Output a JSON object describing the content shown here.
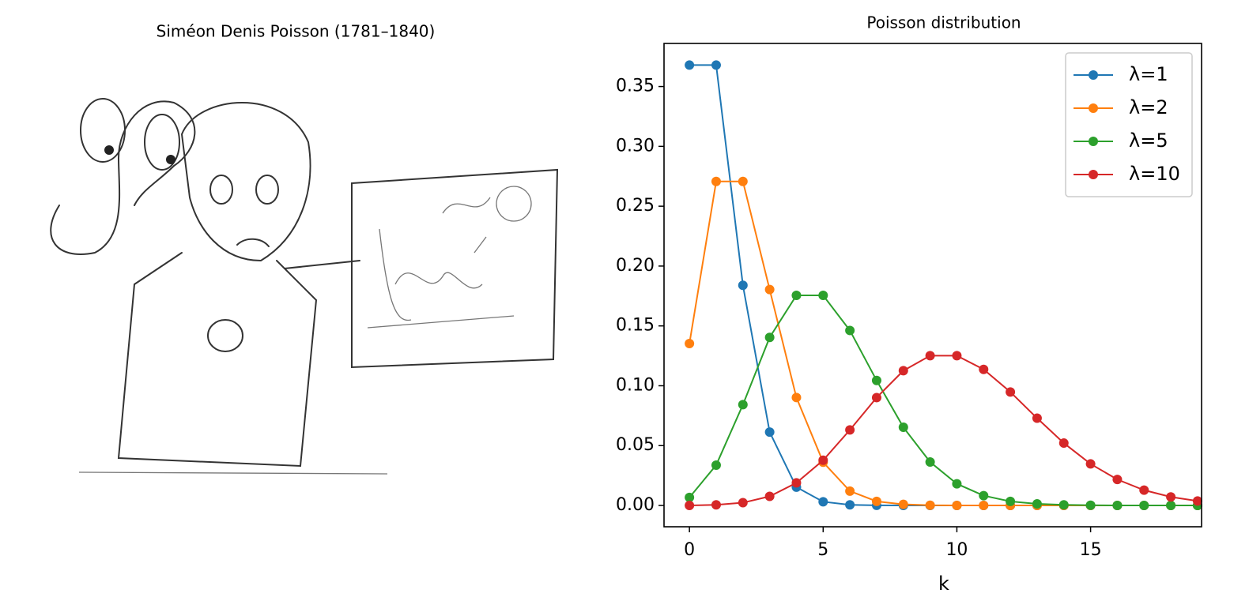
{
  "illustration": {
    "title": "Siméon Denis Poisson (1781–1840)"
  },
  "chart_data": {
    "type": "line",
    "title": "Poisson distribution",
    "x_label": "k",
    "marker": "o",
    "x": [
      0,
      1,
      2,
      3,
      4,
      5,
      6,
      7,
      8,
      9,
      10,
      11,
      12,
      13,
      14,
      15,
      16,
      17,
      18,
      19
    ],
    "series": [
      {
        "name": "λ=1",
        "color": "#1f77b4",
        "values": [
          0.3679,
          0.3679,
          0.1839,
          0.0613,
          0.0153,
          0.0031,
          0.0005,
          0.0001,
          0.0,
          0.0,
          0.0,
          0.0,
          0.0,
          0.0,
          0.0,
          0.0,
          0.0,
          0.0,
          0.0,
          0.0
        ]
      },
      {
        "name": "λ=2",
        "color": "#ff7f0e",
        "values": [
          0.1353,
          0.2707,
          0.2707,
          0.1804,
          0.0902,
          0.0361,
          0.012,
          0.0034,
          0.0009,
          0.0002,
          0.0,
          0.0,
          0.0,
          0.0,
          0.0,
          0.0,
          0.0,
          0.0,
          0.0,
          0.0
        ]
      },
      {
        "name": "λ=5",
        "color": "#2ca02c",
        "values": [
          0.0067,
          0.0337,
          0.0842,
          0.1404,
          0.1755,
          0.1755,
          0.1462,
          0.1044,
          0.0653,
          0.0363,
          0.0181,
          0.0082,
          0.0034,
          0.0013,
          0.0005,
          0.0002,
          0.0,
          0.0,
          0.0,
          0.0
        ]
      },
      {
        "name": "λ=10",
        "color": "#d62728",
        "values": [
          0.0,
          0.0005,
          0.0023,
          0.0076,
          0.0189,
          0.0378,
          0.0631,
          0.0901,
          0.1126,
          0.1251,
          0.1251,
          0.1137,
          0.0948,
          0.0729,
          0.0521,
          0.0347,
          0.0217,
          0.0128,
          0.0071,
          0.0037
        ]
      }
    ],
    "xlim": [
      -0.95,
      19.15
    ],
    "xticks": [
      0,
      5,
      10,
      15
    ],
    "ylim": [
      -0.0178,
      0.386
    ],
    "yticks": [
      {
        "value": 0,
        "label": "0.00"
      },
      {
        "value": 0.05,
        "label": "0.05"
      },
      {
        "value": 0.1,
        "label": "0.10"
      },
      {
        "value": 0.15,
        "label": "0.15"
      },
      {
        "value": 0.2,
        "label": "0.20"
      },
      {
        "value": 0.25,
        "label": "0.25"
      },
      {
        "value": 0.3,
        "label": "0.30"
      },
      {
        "value": 0.35,
        "label": "0.35"
      }
    ],
    "grid": false,
    "legend": "upper right"
  }
}
